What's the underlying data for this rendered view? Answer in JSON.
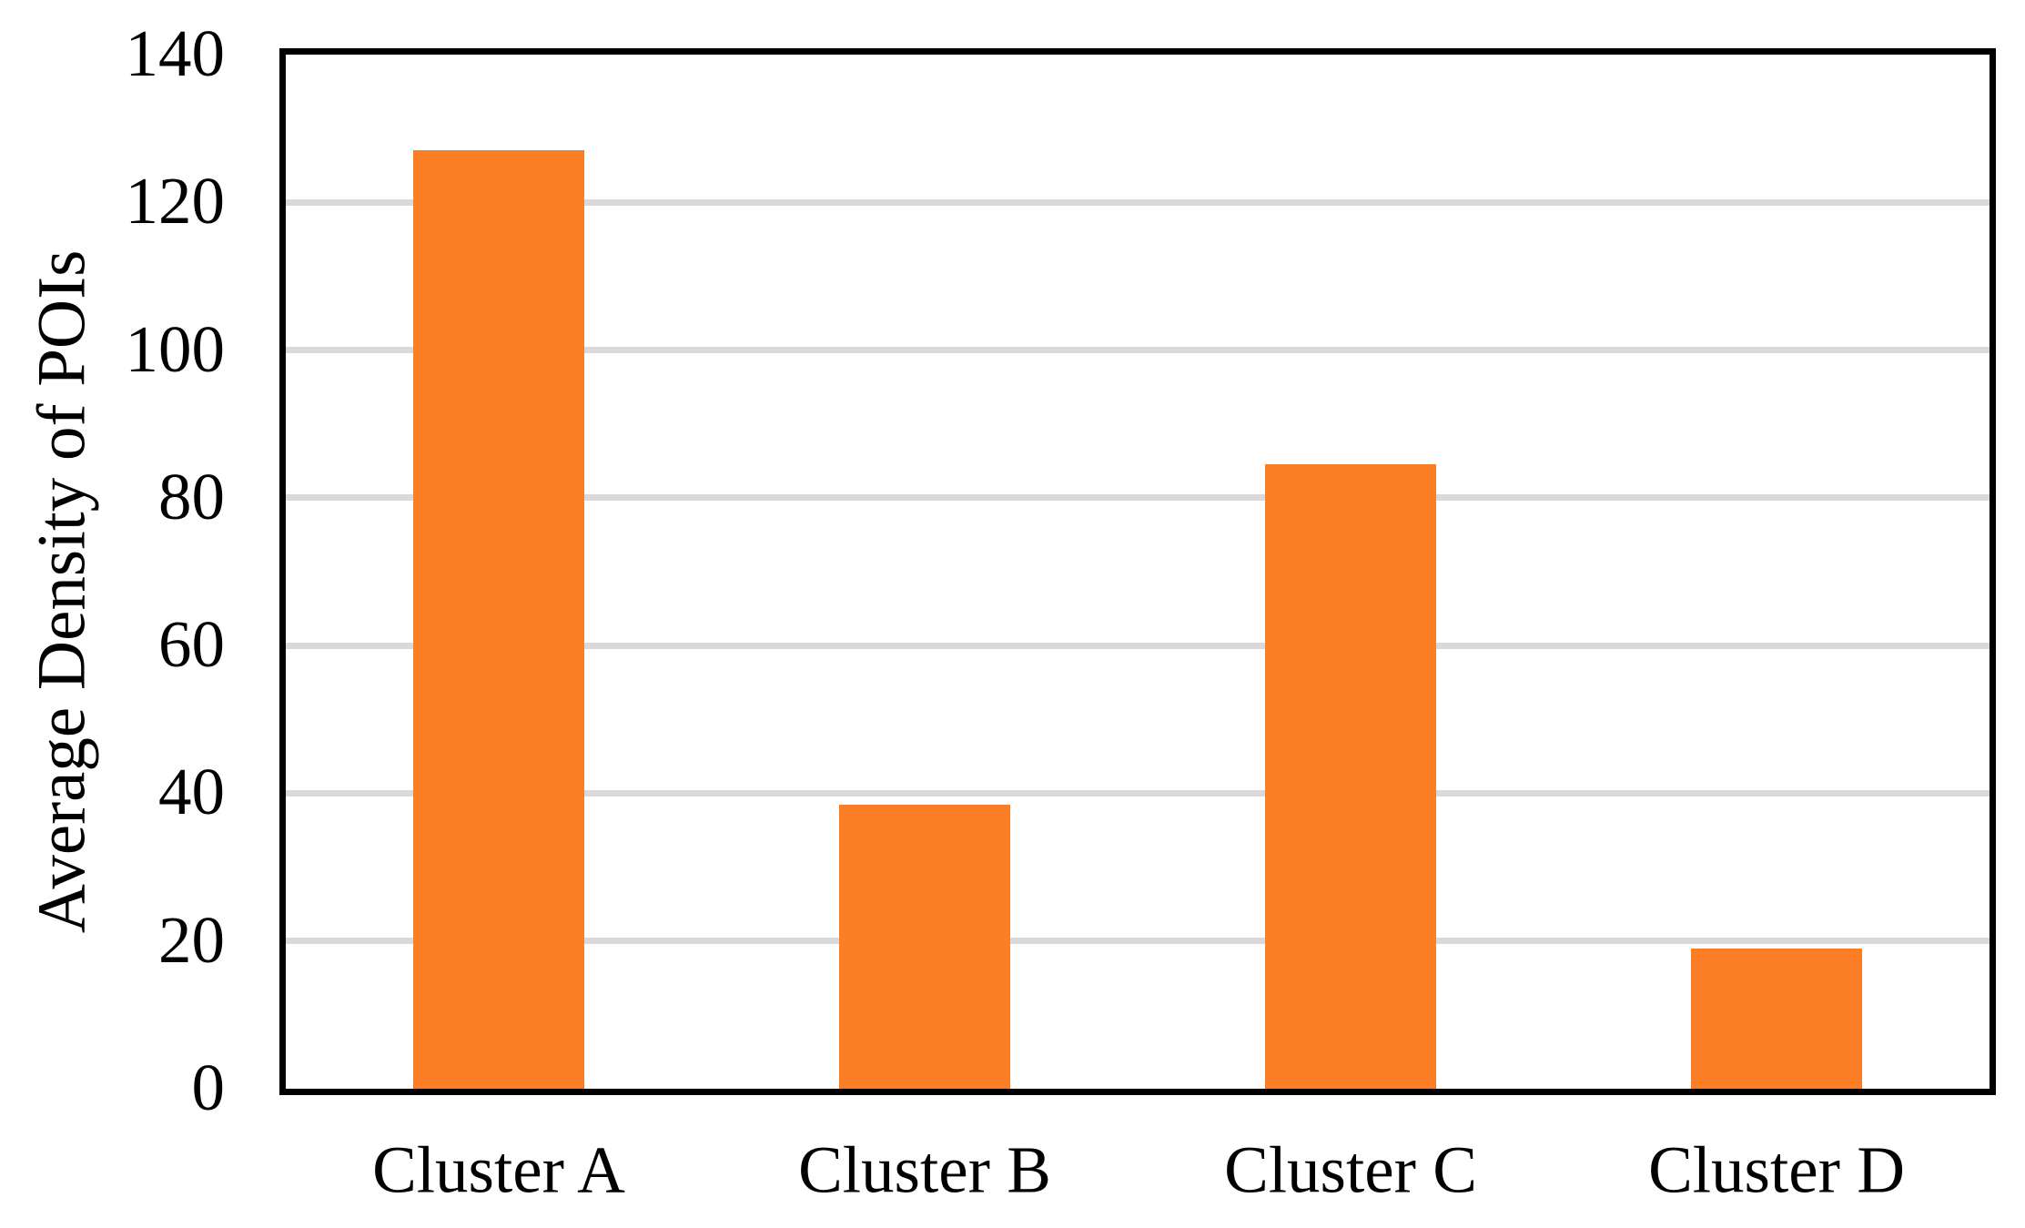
{
  "chart_data": {
    "type": "bar",
    "title": "",
    "categories": [
      "Cluster A",
      "Cluster B",
      "Cluster C",
      "Cluster D"
    ],
    "values": [
      127,
      38.5,
      84.5,
      19
    ],
    "xlabel": "",
    "ylabel": "Average Density of POIs",
    "ylim": [
      0,
      140
    ],
    "yticks": [
      0,
      20,
      40,
      60,
      80,
      100,
      120,
      140
    ],
    "grid": "horizontal-only",
    "legend": "none",
    "bar_color": "#FB7D25",
    "gridline_color": "#D9D9D9",
    "axis_color": "#000000",
    "background_color": "#FFFFFF"
  }
}
